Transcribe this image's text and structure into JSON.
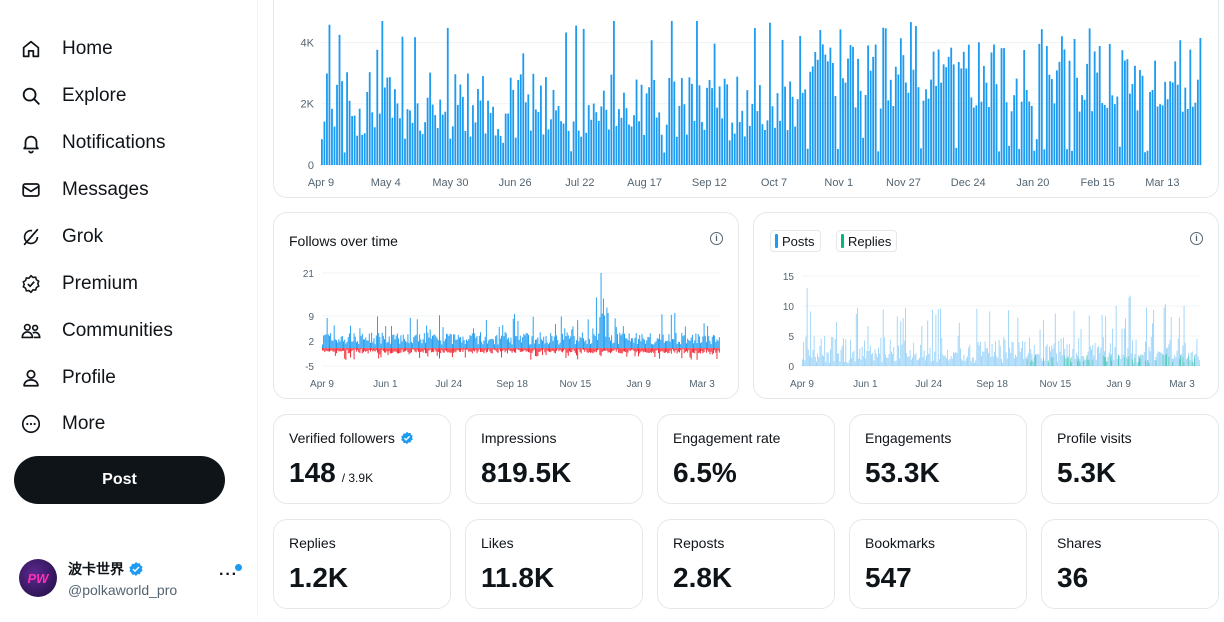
{
  "nav": [
    {
      "key": "home",
      "label": "Home",
      "icon": "home-icon"
    },
    {
      "key": "explore",
      "label": "Explore",
      "icon": "search-icon"
    },
    {
      "key": "notifications",
      "label": "Notifications",
      "icon": "bell-icon"
    },
    {
      "key": "messages",
      "label": "Messages",
      "icon": "envelope-icon"
    },
    {
      "key": "grok",
      "label": "Grok",
      "icon": "grok-icon"
    },
    {
      "key": "premium",
      "label": "Premium",
      "icon": "premium-badge-icon"
    },
    {
      "key": "communities",
      "label": "Communities",
      "icon": "communities-icon"
    },
    {
      "key": "profile",
      "label": "Profile",
      "icon": "person-icon"
    },
    {
      "key": "more",
      "label": "More",
      "icon": "more-circle-icon"
    }
  ],
  "post_button": "Post",
  "account": {
    "name": "波卡世界",
    "handle": "@polkaworld_pro",
    "avatar_text": "PW",
    "more": "···"
  },
  "colors": {
    "accent": "#1d9bf0",
    "negative": "#f4212e",
    "replies": "#00ba7c",
    "text": "#0f1419",
    "muted": "#536471"
  },
  "stats_row1": [
    {
      "label": "Verified followers",
      "value": "148",
      "sub": "/ 3.9K",
      "verified": true
    },
    {
      "label": "Impressions",
      "value": "819.5K"
    },
    {
      "label": "Engagement rate",
      "value": "6.5%"
    },
    {
      "label": "Engagements",
      "value": "53.3K"
    },
    {
      "label": "Profile visits",
      "value": "5.3K"
    }
  ],
  "stats_row2": [
    {
      "label": "Replies",
      "value": "1.2K"
    },
    {
      "label": "Likes",
      "value": "11.8K"
    },
    {
      "label": "Reposts",
      "value": "2.8K"
    },
    {
      "label": "Bookmarks",
      "value": "547"
    },
    {
      "label": "Shares",
      "value": "36"
    }
  ],
  "follows_card": {
    "title": "Follows over time",
    "info": "i"
  },
  "posts_card": {
    "legend": [
      "Posts",
      "Replies"
    ],
    "info": "i"
  },
  "chart_data": [
    {
      "type": "bar",
      "title": "",
      "ylim": [
        0,
        4700
      ],
      "yticks": [
        {
          "v": 0,
          "label": "0"
        },
        {
          "v": 2000,
          "label": "2K"
        },
        {
          "v": 4000,
          "label": "4K"
        }
      ],
      "xticks": [
        "Apr 9",
        "May 4",
        "May 30",
        "Jun 26",
        "Jul 22",
        "Aug 17",
        "Sep 12",
        "Oct 7",
        "Nov 1",
        "Nov 27",
        "Dec 24",
        "Jan 20",
        "Feb 15",
        "Mar 13"
      ],
      "series": [
        {
          "name": "Impressions",
          "color": "#1d9bf0"
        }
      ],
      "n_points": 350,
      "approx_mean": 2300,
      "approx_max": 4700
    },
    {
      "type": "bar",
      "title": "Follows over time",
      "ylim": [
        -5,
        21
      ],
      "yticks": [
        {
          "v": 21,
          "label": "21"
        },
        {
          "v": 9,
          "label": "9"
        },
        {
          "v": 2,
          "label": "2"
        },
        {
          "v": -5,
          "label": "-5"
        }
      ],
      "xticks": [
        "Apr 9",
        "Jun 1",
        "Jul 24",
        "Sep 18",
        "Nov 15",
        "Jan 9",
        "Mar 3"
      ],
      "series": [
        {
          "name": "Follows",
          "color": "#1d9bf0"
        },
        {
          "name": "Unfollows",
          "color": "#f4212e"
        }
      ],
      "n_points": 340,
      "peak": 21
    },
    {
      "type": "bar",
      "title": "",
      "ylim": [
        0,
        15
      ],
      "yticks": [
        {
          "v": 15,
          "label": "15"
        },
        {
          "v": 10,
          "label": "10"
        },
        {
          "v": 5,
          "label": "5"
        },
        {
          "v": 0,
          "label": "0"
        }
      ],
      "xticks": [
        "Apr 9",
        "Jun 1",
        "Jul 24",
        "Sep 18",
        "Nov 15",
        "Jan 9",
        "Mar 3"
      ],
      "series": [
        {
          "name": "Posts",
          "color": "#1d9bf0"
        },
        {
          "name": "Replies",
          "color": "#00ba7c"
        }
      ],
      "n_points": 340,
      "peak": 13
    }
  ]
}
